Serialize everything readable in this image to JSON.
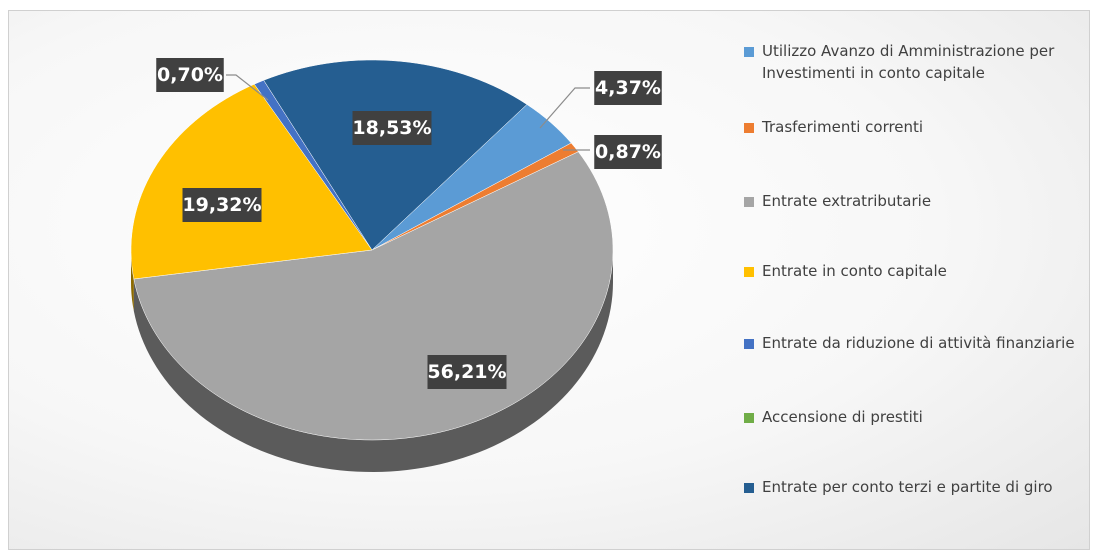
{
  "chart_data": {
    "type": "pie",
    "categories": [
      "Utilizzo Avanzo di Amministrazione per Investimenti in conto capitale",
      "Trasferimenti correnti",
      "Entrate extratributarie",
      "Entrate in conto capitale",
      "Entrate da riduzione di attività finanziarie",
      "Accensione di prestiti",
      "Entrate per conto terzi e partite di giro"
    ],
    "values": [
      4.37,
      0.87,
      56.21,
      19.32,
      0.7,
      0,
      18.53
    ],
    "value_labels": [
      "4,37%",
      "0,87%",
      "56,21%",
      "19,32%",
      "0,70%",
      null,
      "18,53%"
    ],
    "colors": [
      "#5b9bd5",
      "#ed7d31",
      "#a5a5a5",
      "#ffc000",
      "#4472c4",
      "#70ad47",
      "#255e91"
    ],
    "legend": "right"
  }
}
